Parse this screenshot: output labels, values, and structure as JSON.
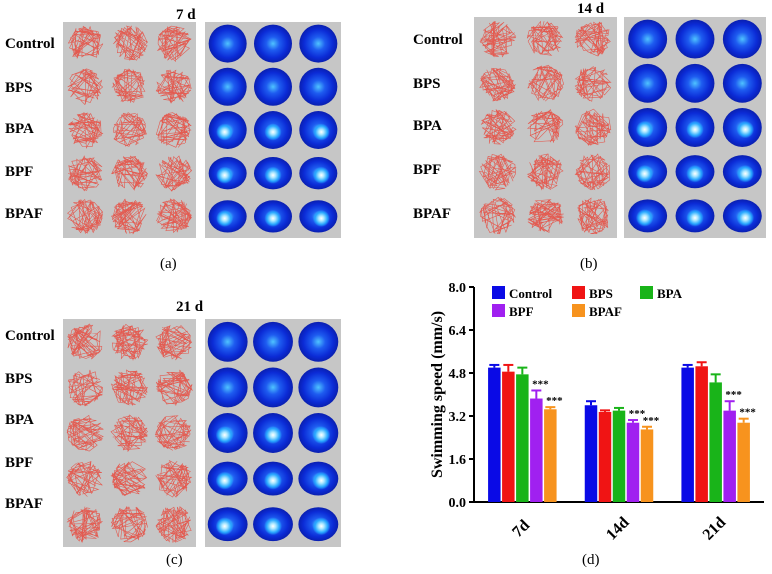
{
  "panels": [
    {
      "id": "a",
      "time": "7 d",
      "caption": "(a)"
    },
    {
      "id": "b",
      "time": "14 d",
      "caption": "(b)"
    },
    {
      "id": "c",
      "time": "21 d",
      "caption": "(c)"
    }
  ],
  "groups": [
    "Control",
    "BPS",
    "BPA",
    "BPF",
    "BPAF"
  ],
  "chart_caption": "(d)",
  "chart_data": {
    "type": "bar",
    "ylabel": "Swimming speed (mm/s)",
    "xlabel": "",
    "categories": [
      "7d",
      "14d",
      "21d"
    ],
    "yticks": [
      "0.0",
      "1.6",
      "3.2",
      "4.8",
      "6.4",
      "8.0"
    ],
    "ylim": [
      0,
      8.0
    ],
    "significance": "***",
    "series": [
      {
        "name": "Control",
        "color": "#0a0ae6",
        "values": [
          5.0,
          3.6,
          5.0
        ],
        "errors": [
          0.1,
          0.15,
          0.1
        ],
        "sig": [
          "",
          "",
          ""
        ]
      },
      {
        "name": "BPS",
        "color": "#f01414",
        "values": [
          4.85,
          3.35,
          5.05
        ],
        "errors": [
          0.25,
          0.06,
          0.15
        ],
        "sig": [
          "",
          "",
          ""
        ]
      },
      {
        "name": "BPA",
        "color": "#19b419",
        "values": [
          4.75,
          3.4,
          4.45
        ],
        "errors": [
          0.25,
          0.1,
          0.3
        ],
        "sig": [
          "",
          "",
          ""
        ]
      },
      {
        "name": "BPF",
        "color": "#a020f0",
        "values": [
          3.85,
          2.95,
          3.4
        ],
        "errors": [
          0.3,
          0.1,
          0.35
        ],
        "sig": [
          "***",
          "***",
          "***"
        ]
      },
      {
        "name": "BPAF",
        "color": "#f7931e",
        "values": [
          3.45,
          2.7,
          2.95
        ],
        "errors": [
          0.08,
          0.1,
          0.15
        ],
        "sig": [
          "***",
          "***",
          "***"
        ]
      }
    ]
  }
}
